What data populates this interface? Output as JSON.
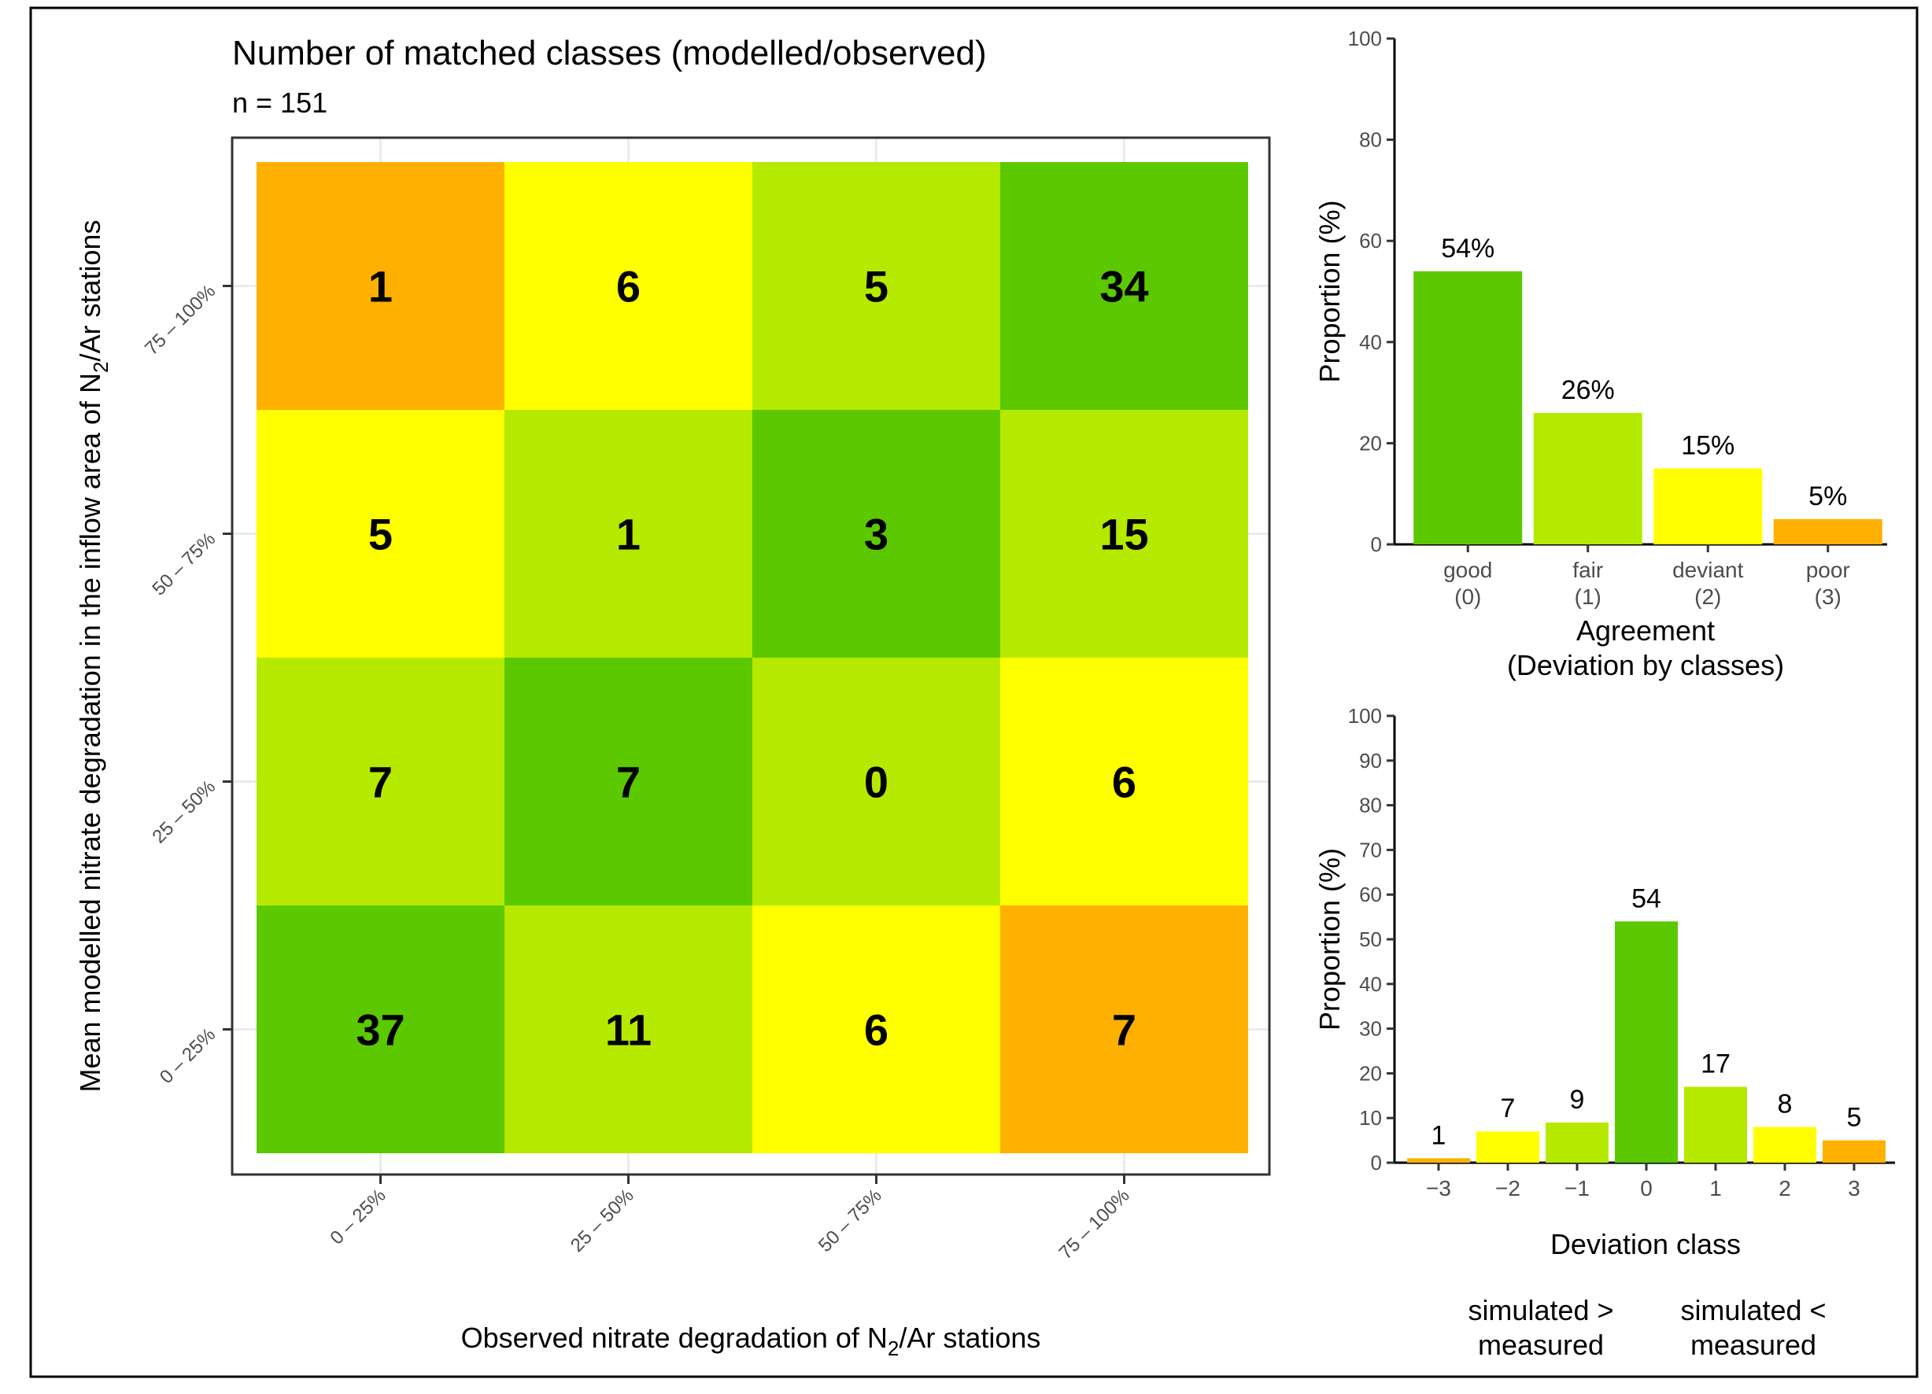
{
  "chart_data": [
    {
      "type": "heatmap",
      "title": "Number of matched classes (modelled/observed)",
      "subtitle": "n = 151",
      "xlabel": {
        "pre": "Observed nitrate degradation of N",
        "sub": "2",
        "post": "/Ar stations"
      },
      "ylabel": {
        "pre": "Mean modelled nitrate degradation in the inflow area of N",
        "sub": "2",
        "post": "/Ar stations"
      },
      "x_categories": [
        "0 – 25%",
        "25 – 50%",
        "50 – 75%",
        "75 – 100%"
      ],
      "y_categories": [
        "0 – 25%",
        "25 – 50%",
        "50 – 75%",
        "75 – 100%"
      ],
      "values": [
        [
          37,
          11,
          6,
          7
        ],
        [
          7,
          7,
          0,
          6
        ],
        [
          5,
          1,
          3,
          15
        ],
        [
          1,
          6,
          5,
          34
        ]
      ],
      "cell_colors": [
        [
          "#5cc800",
          "#b5ea00",
          "#ffff00",
          "#ffb000"
        ],
        [
          "#b5ea00",
          "#5cc800",
          "#b5ea00",
          "#ffff00"
        ],
        [
          "#ffff00",
          "#b5ea00",
          "#5cc800",
          "#b5ea00"
        ],
        [
          "#ffb000",
          "#ffff00",
          "#b5ea00",
          "#5cc800"
        ]
      ]
    },
    {
      "type": "bar",
      "categories": [
        "good",
        "fair",
        "deviant",
        "poor"
      ],
      "category_sub": [
        "(0)",
        "(1)",
        "(2)",
        "(3)"
      ],
      "values": [
        54,
        26,
        15,
        5
      ],
      "labels": [
        "54%",
        "26%",
        "15%",
        "5%"
      ],
      "colors": [
        "#5cc800",
        "#b5ea00",
        "#ffff00",
        "#ffb000"
      ],
      "xlabel": "Agreement",
      "xlabel2": "(Deviation by classes)",
      "ylabel": "Proportion (%)",
      "ylim": [
        0,
        100
      ],
      "yticks": [
        0,
        20,
        40,
        60,
        80,
        100
      ]
    },
    {
      "type": "bar",
      "categories": [
        "−3",
        "−2",
        "−1",
        "0",
        "1",
        "2",
        "3"
      ],
      "values": [
        1,
        7,
        9,
        54,
        17,
        8,
        5
      ],
      "labels": [
        "1",
        "7",
        "9",
        "54",
        "17",
        "8",
        "5"
      ],
      "colors": [
        "#ffb000",
        "#ffff00",
        "#b5ea00",
        "#5cc800",
        "#b5ea00",
        "#ffff00",
        "#ffb000"
      ],
      "xlabel": "Deviation class",
      "ylabel": "Proportion (%)",
      "ylim": [
        0,
        100
      ],
      "yticks": [
        0,
        10,
        20,
        30,
        40,
        50,
        60,
        70,
        80,
        90,
        100
      ],
      "annotations": [
        {
          "lines": [
            "simulated >",
            "measured"
          ]
        },
        {
          "lines": [
            "simulated <",
            "measured"
          ]
        }
      ]
    }
  ]
}
